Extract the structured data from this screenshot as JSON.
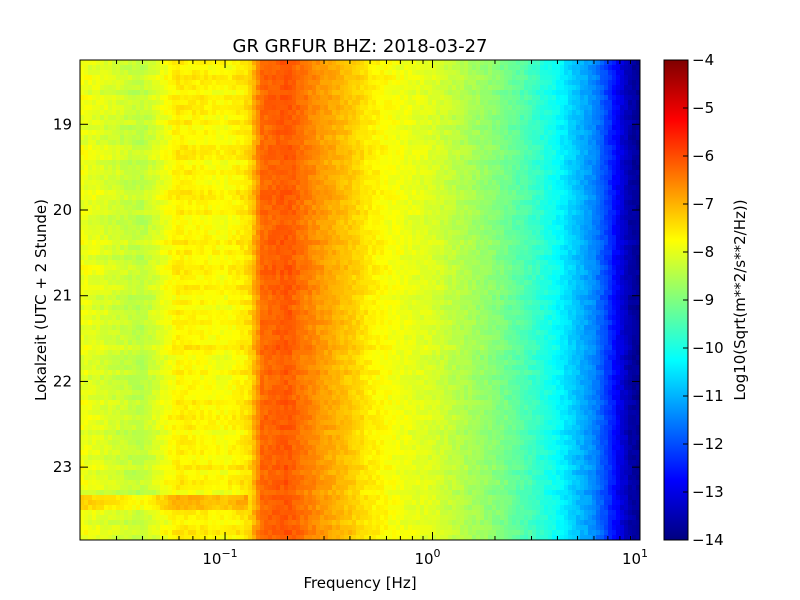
{
  "chart_data": {
    "type": "heatmap",
    "title": "GR GRFUR BHZ: 2018-03-27",
    "xlabel": "Frequency [Hz]",
    "ylabel": "Lokalzeit (UTC + 2 Stunde)",
    "x_scale": "log",
    "xlim": [
      0.02,
      10
    ],
    "ylim": [
      23.85,
      18.25
    ],
    "x_ticks": [
      {
        "value": 0.1,
        "base": "10",
        "exp": "−1"
      },
      {
        "value": 1,
        "base": "10",
        "exp": "0"
      },
      {
        "value": 10,
        "base": "10",
        "exp": "1"
      }
    ],
    "y_ticks": [
      {
        "value": 19,
        "label": "19"
      },
      {
        "value": 20,
        "label": "20"
      },
      {
        "value": 21,
        "label": "21"
      },
      {
        "value": 22,
        "label": "22"
      },
      {
        "value": 23,
        "label": "23"
      }
    ],
    "colorbar": {
      "label": "Log10(Sqrt(m**2/s**2/Hz))",
      "colormap": "jet",
      "range": [
        -14,
        -4
      ],
      "ticks": [
        {
          "value": -4,
          "label": "−4"
        },
        {
          "value": -5,
          "label": "−5"
        },
        {
          "value": -6,
          "label": "−6"
        },
        {
          "value": -7,
          "label": "−7"
        },
        {
          "value": -8,
          "label": "−8"
        },
        {
          "value": -9,
          "label": "−9"
        },
        {
          "value": -10,
          "label": "−10"
        },
        {
          "value": -11,
          "label": "−11"
        },
        {
          "value": -12,
          "label": "−12"
        },
        {
          "value": -13,
          "label": "−13"
        },
        {
          "value": -14,
          "label": "−14"
        }
      ]
    },
    "spectrum_profile": {
      "frequency_hz": [
        0.02,
        0.04,
        0.06,
        0.08,
        0.1,
        0.13,
        0.15,
        0.2,
        0.25,
        0.3,
        0.4,
        0.5,
        0.7,
        1.0,
        1.3,
        2.0,
        3.0,
        4.0,
        5.0,
        6.0,
        7.0,
        8.0,
        9.0,
        10.0
      ],
      "log10_amplitude": [
        -7.9,
        -8.4,
        -7.6,
        -7.7,
        -7.8,
        -7.5,
        -6.3,
        -6.1,
        -6.5,
        -6.8,
        -7.2,
        -7.6,
        -7.9,
        -8.1,
        -8.4,
        -8.9,
        -9.6,
        -10.2,
        -10.9,
        -11.4,
        -12.2,
        -13.0,
        -13.6,
        -13.8
      ]
    }
  }
}
